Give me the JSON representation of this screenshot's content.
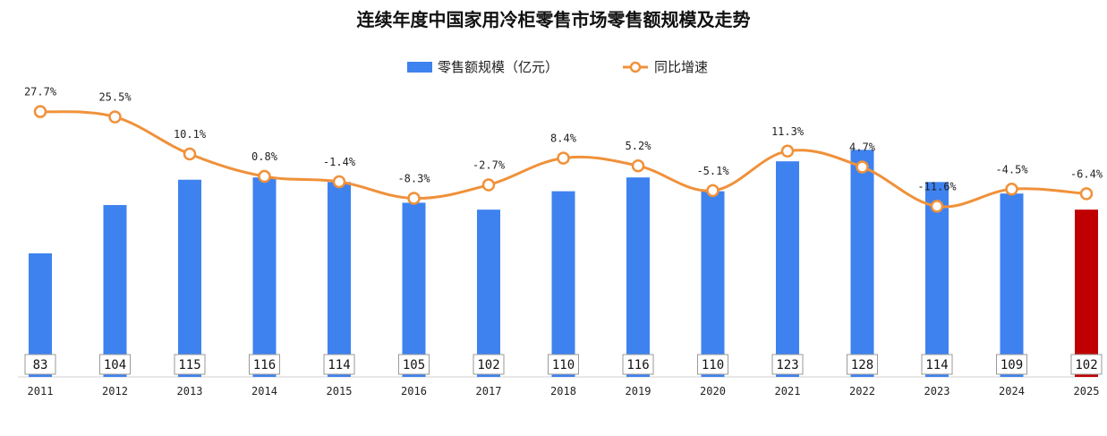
{
  "chart_data": {
    "type": "bar",
    "title": "连续年度中国家用冷柜零售市场零售额规模及走势",
    "categories": [
      "2011",
      "2012",
      "2013",
      "2014",
      "2015",
      "2016",
      "2017",
      "2018",
      "2019",
      "2020",
      "2021",
      "2022",
      "2023",
      "2024",
      "2025"
    ],
    "series": [
      {
        "name": "零售额规模（亿元）",
        "type": "bar",
        "values": [
          83,
          104,
          115,
          116,
          114,
          105,
          102,
          110,
          116,
          110,
          123,
          128,
          114,
          109,
          102
        ],
        "color": "#3E82F0",
        "highlight_color": "#C00000",
        "highlight_index": 14
      },
      {
        "name": "同比增速",
        "type": "line",
        "values": [
          27.7,
          25.5,
          10.1,
          0.8,
          -1.4,
          -8.3,
          -2.7,
          8.4,
          5.2,
          -5.1,
          11.3,
          4.7,
          -11.6,
          -4.5,
          -6.4
        ],
        "labels": [
          "27.7%",
          "25.5%",
          "10.1%",
          "0.8%",
          "-1.4%",
          "-8.3%",
          "-2.7%",
          "8.4%",
          "5.2%",
          "-5.1%",
          "11.3%",
          "4.7%",
          "-11.6%",
          "-4.5%",
          "-6.4%"
        ],
        "color": "#F0913A"
      }
    ],
    "legend_position": "top-center",
    "grid": false
  }
}
